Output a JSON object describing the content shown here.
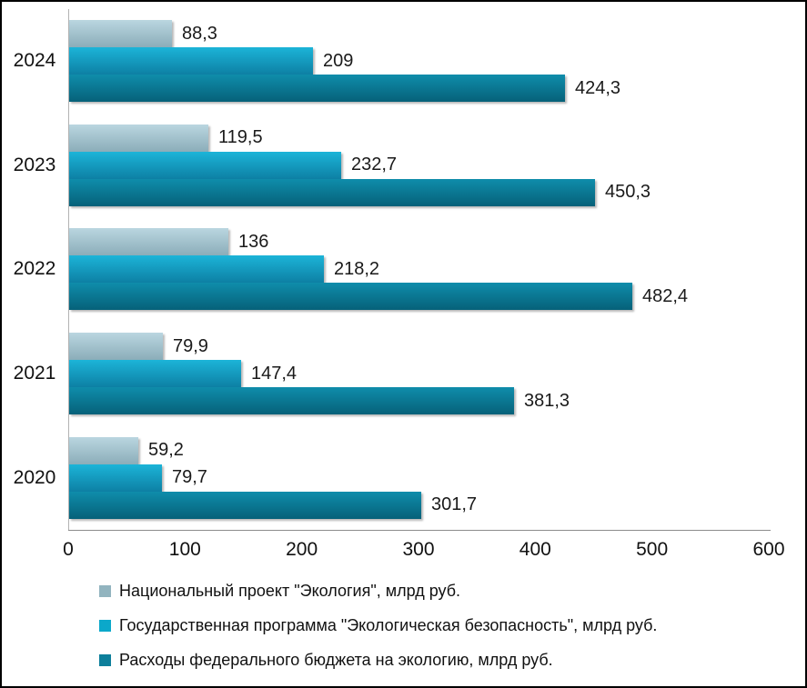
{
  "chart_data": {
    "type": "bar",
    "orientation": "horizontal",
    "title": "",
    "xlabel": "",
    "ylabel": "",
    "xlim": [
      0,
      600
    ],
    "x_ticks": [
      "0",
      "100",
      "200",
      "300",
      "400",
      "500",
      "600"
    ],
    "grid": false,
    "legend_position": "bottom",
    "categories": [
      "2024",
      "2023",
      "2022",
      "2021",
      "2020"
    ],
    "series": [
      {
        "name": "Национальный проект \"Экология\", млрд  руб.",
        "legend_color": "#92b4bf",
        "gradient": [
          "#bad6e0",
          "#8badb9"
        ],
        "values": [
          88.3,
          119.5,
          136,
          79.9,
          59.2
        ],
        "labels": [
          "88,3",
          "119,5",
          "136",
          "79,9",
          "59,2"
        ]
      },
      {
        "name": "Государственная программа \"Экологическая безопасность\", млрд  руб.",
        "legend_color": "#0ba8ca",
        "gradient": [
          "#1cb4d8",
          "#0d80a4"
        ],
        "values": [
          209,
          232.7,
          218.2,
          147.4,
          79.7
        ],
        "labels": [
          "209",
          "232,7",
          "218,2",
          "147,4",
          "79,7"
        ]
      },
      {
        "name": "Расходы федерального бюджета на экологию, млрд  руб.",
        "legend_color": "#0d7f9b",
        "gradient": [
          "#0f8dab",
          "#066179"
        ],
        "values": [
          424.3,
          450.3,
          482.4,
          381.3,
          301.7
        ],
        "labels": [
          "424,3",
          "450,3",
          "482,4",
          "381,3",
          "301,7"
        ]
      }
    ]
  }
}
